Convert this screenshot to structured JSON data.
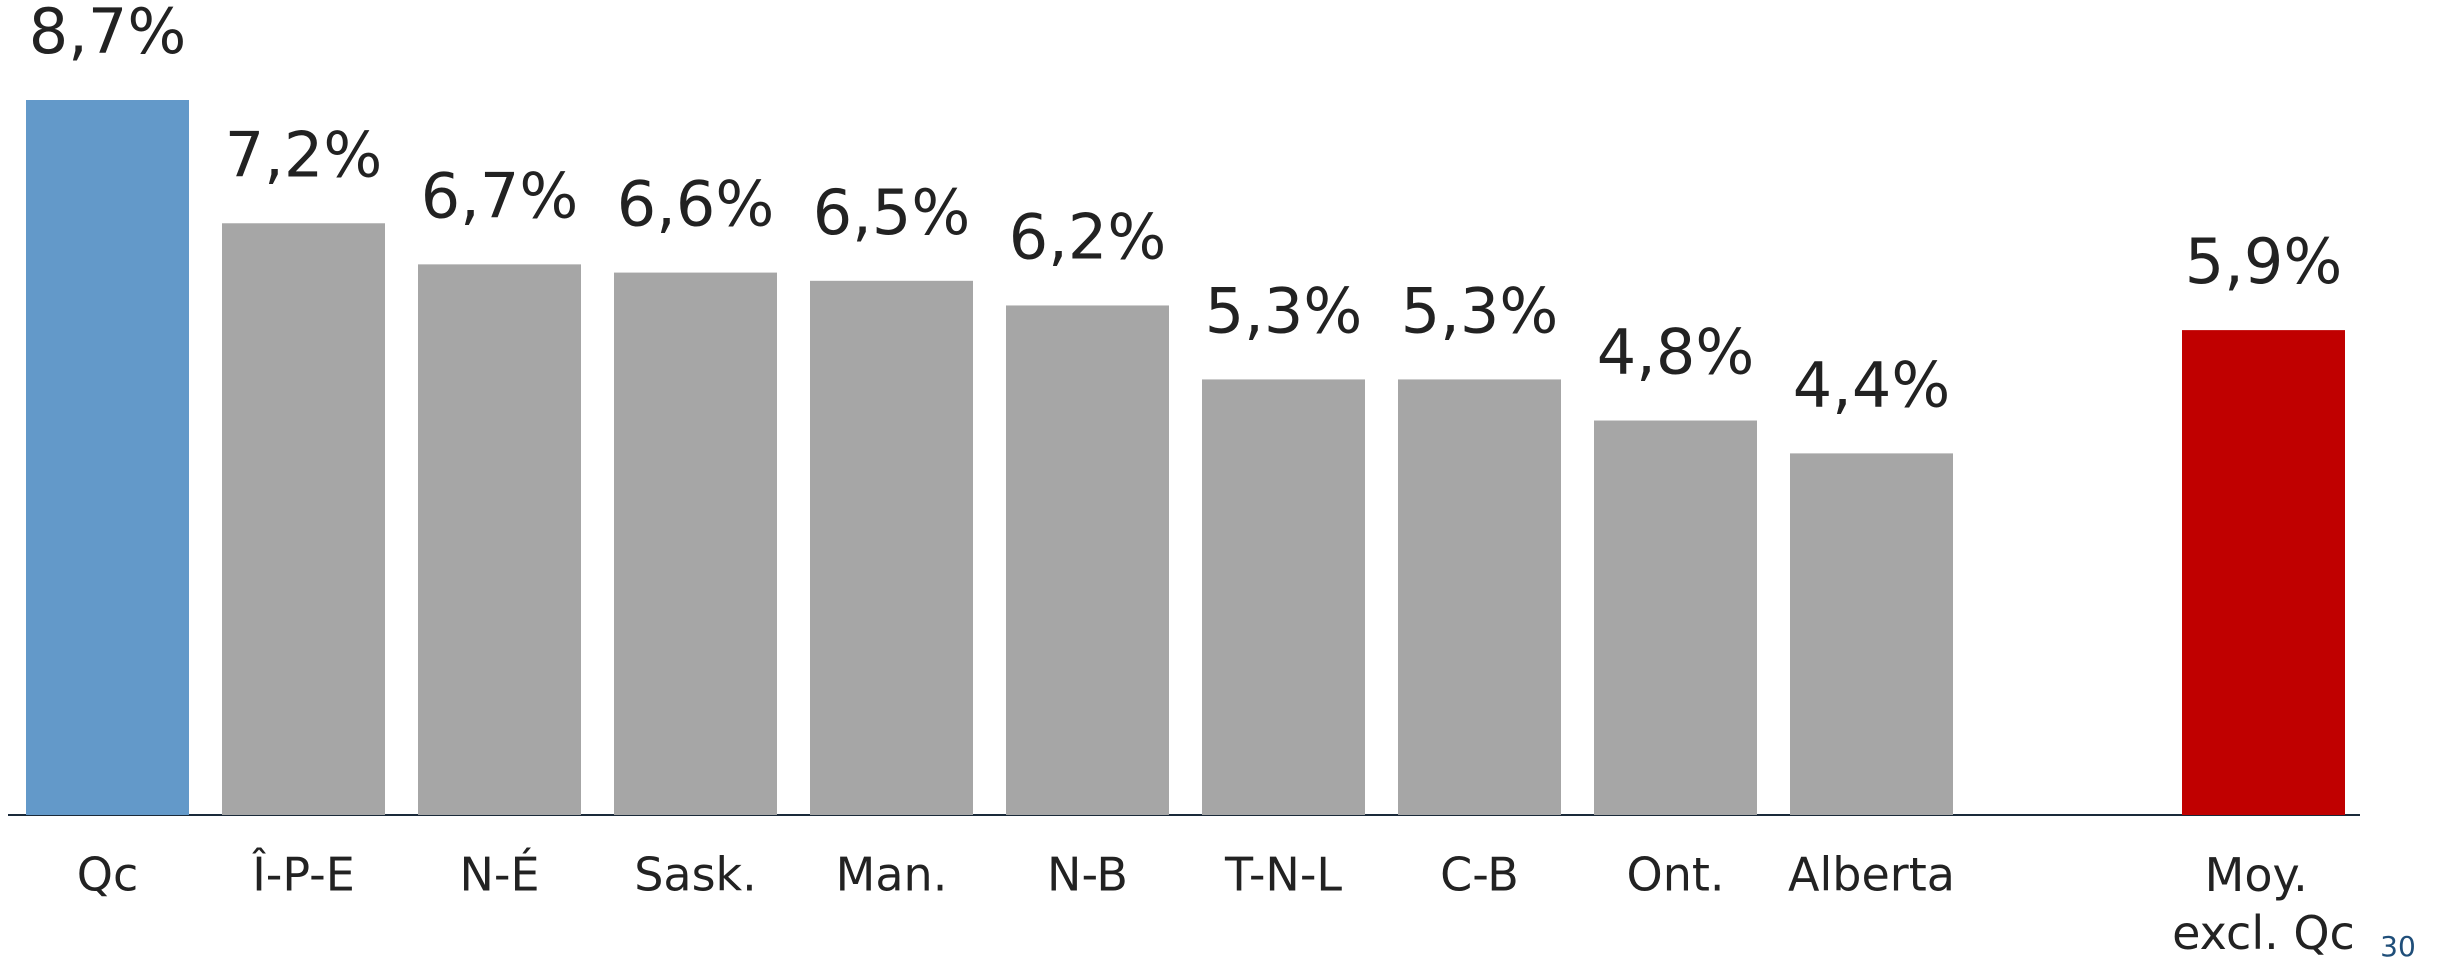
{
  "chart_data": {
    "type": "bar",
    "categories": [
      "Qc",
      "Î-P-E",
      "N-É",
      "Sask.",
      "Man.",
      "N-B",
      "T-N-L",
      "C-B",
      "Ont.",
      "Alberta",
      null,
      "Moy. excl. Qc"
    ],
    "values": [
      8.7,
      7.2,
      6.7,
      6.6,
      6.5,
      6.2,
      5.3,
      5.3,
      4.8,
      4.4,
      null,
      5.9
    ],
    "value_labels": [
      "8,7%",
      "7,2%",
      "6,7%",
      "6,6%",
      "6,5%",
      "6,2%",
      "5,3%",
      "5,3%",
      "4,8%",
      "4,4%",
      null,
      "5,9%"
    ],
    "colors": [
      "#6399c9",
      "#a6a6a6",
      "#a6a6a6",
      "#a6a6a6",
      "#a6a6a6",
      "#a6a6a6",
      "#a6a6a6",
      "#a6a6a6",
      "#a6a6a6",
      "#a6a6a6",
      null,
      "#c00000"
    ],
    "page_number": "30"
  }
}
